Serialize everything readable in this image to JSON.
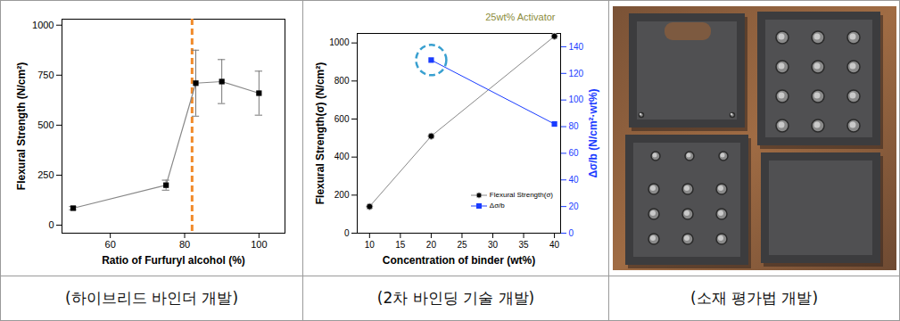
{
  "chart_data": [
    {
      "type": "line",
      "caption": "(하이브리드 바인더 개발)",
      "x_label": "Ratio of Furfuryl alcohol (%)",
      "y_label": "Flexural Strength (N/cm²)",
      "x": [
        50,
        75,
        83,
        90,
        100
      ],
      "series": [
        {
          "name": "Flexural Strength",
          "color": "#000000",
          "marker": "square",
          "values": [
            85,
            200,
            710,
            718,
            660
          ],
          "error": [
            8,
            25,
            165,
            110,
            110
          ]
        }
      ],
      "xlim": [
        47,
        107
      ],
      "xticks": [
        60,
        80,
        100
      ],
      "ylim": [
        -40,
        1030
      ],
      "yticks": [
        0,
        250,
        500,
        750,
        1000
      ],
      "vline": {
        "x": 82,
        "color": "#f08a2a",
        "line_style": "dashed"
      }
    },
    {
      "type": "line",
      "caption": "(2차 바인딩 기술 개발)",
      "title": "25wt% Activator",
      "x_label": "Concentration of binder (wt%)",
      "y_label": "Flexural Strength(σ) (N/cm²)",
      "y2_label": "Δσ/b (N/cm²·wt%)",
      "x": [
        10,
        20,
        40
      ],
      "series": [
        {
          "name": "Flexural Strength(σ)",
          "color": "#000000",
          "marker": "circle",
          "values": [
            140,
            510,
            1035
          ]
        },
        {
          "name": "Δσ/b",
          "color": "#1a3cff",
          "marker": "square",
          "axis": "y2",
          "values": [
            null,
            130,
            82
          ]
        }
      ],
      "xlim": [
        8,
        41
      ],
      "xticks": [
        10,
        15,
        20,
        25,
        30,
        35,
        40
      ],
      "ylim": [
        0,
        1050
      ],
      "yticks": [
        0,
        200,
        400,
        600,
        800,
        1000
      ],
      "y2lim": [
        0,
        150
      ],
      "y2ticks": [
        0,
        20,
        40,
        60,
        80,
        100,
        120,
        140
      ],
      "legend": "lower right",
      "highlight": {
        "x": 20,
        "y": 130,
        "axis": "y2",
        "color": "#39a0d0",
        "line_style": "dashed"
      }
    }
  ],
  "image_panel": {
    "caption": "(소재 평가법 개발)"
  }
}
